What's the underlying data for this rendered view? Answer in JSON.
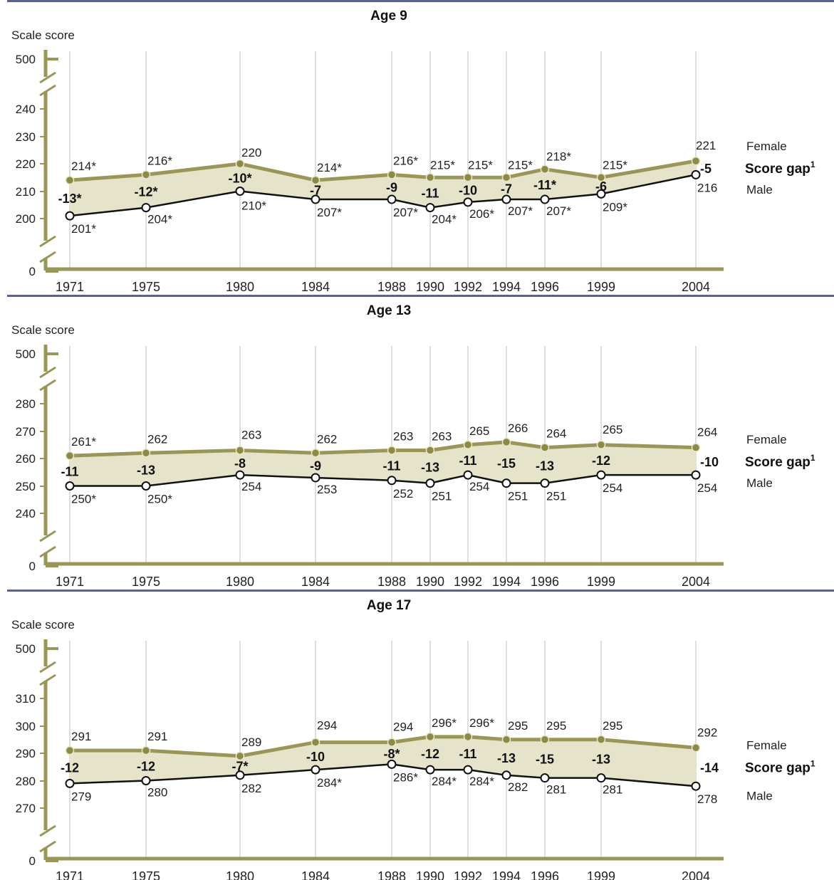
{
  "colors": {
    "female": "#9a9656",
    "female_marker": "#8c8a45",
    "male": "#111111",
    "band": "#e6e3cb",
    "axis": "#9a9656",
    "separator": "#5c6290",
    "grid": "#c8c8c8"
  },
  "chart_data": [
    {
      "type": "line",
      "title": "Age 9",
      "ylabel": "Scale score",
      "x": [
        "1971",
        "1975",
        "1980",
        "1984",
        "1988",
        "1990",
        "1992",
        "1994",
        "1996",
        "1999",
        "2004"
      ],
      "y_ticks": [
        "500",
        "240",
        "230",
        "220",
        "210",
        "200",
        "0"
      ],
      "ylim": [
        195,
        245
      ],
      "axis_break": true,
      "series": [
        {
          "name": "Female",
          "values": [
            214,
            216,
            220,
            214,
            216,
            215,
            215,
            215,
            218,
            215,
            221
          ],
          "labels": [
            "214*",
            "216*",
            "220",
            "214*",
            "216*",
            "215*",
            "215*",
            "215*",
            "218*",
            "215*",
            "221"
          ]
        },
        {
          "name": "Male",
          "values": [
            201,
            204,
            210,
            207,
            207,
            204,
            206,
            207,
            207,
            209,
            216
          ],
          "labels": [
            "201*",
            "204*",
            "210*",
            "207*",
            "207*",
            "204*",
            "206*",
            "207*",
            "207*",
            "209*",
            "216"
          ]
        }
      ],
      "gap_label": "Score gap",
      "gap_footnote": "1",
      "gaps": [
        "-13*",
        "-12*",
        "-10*",
        "-7",
        "-9",
        "-11",
        "-10",
        "-7",
        "-11*",
        "-6",
        "-5"
      ]
    },
    {
      "type": "line",
      "title": "Age 13",
      "ylabel": "Scale score",
      "x": [
        "1971",
        "1975",
        "1980",
        "1984",
        "1988",
        "1990",
        "1992",
        "1994",
        "1996",
        "1999",
        "2004"
      ],
      "y_ticks": [
        "500",
        "280",
        "270",
        "260",
        "250",
        "240",
        "0"
      ],
      "ylim": [
        235,
        285
      ],
      "axis_break": true,
      "series": [
        {
          "name": "Female",
          "values": [
            261,
            262,
            263,
            262,
            263,
            263,
            265,
            266,
            264,
            265,
            264
          ],
          "labels": [
            "261*",
            "262",
            "263",
            "262",
            "263",
            "263",
            "265",
            "266",
            "264",
            "265",
            "264"
          ]
        },
        {
          "name": "Male",
          "values": [
            250,
            250,
            254,
            253,
            252,
            251,
            254,
            251,
            251,
            254,
            254
          ],
          "labels": [
            "250*",
            "250*",
            "254",
            "253",
            "252",
            "251",
            "254",
            "251",
            "251",
            "254",
            "254"
          ]
        }
      ],
      "gap_label": "Score gap",
      "gap_footnote": "1",
      "gaps": [
        "-11",
        "-13",
        "-8",
        "-9",
        "-11",
        "-13",
        "-11",
        "-15",
        "-13",
        "-12",
        "-10"
      ]
    },
    {
      "type": "line",
      "title": "Age 17",
      "ylabel": "Scale score",
      "x": [
        "1971",
        "1975",
        "1980",
        "1984",
        "1988",
        "1990",
        "1992",
        "1994",
        "1996",
        "1999",
        "2004"
      ],
      "y_ticks": [
        "500",
        "310",
        "300",
        "290",
        "280",
        "270",
        "0"
      ],
      "ylim": [
        265,
        315
      ],
      "axis_break": true,
      "series": [
        {
          "name": "Female",
          "values": [
            291,
            291,
            289,
            294,
            294,
            296,
            296,
            295,
            295,
            295,
            292
          ],
          "labels": [
            "291",
            "291",
            "289",
            "294",
            "294",
            "296*",
            "296*",
            "295",
            "295",
            "295",
            "292"
          ]
        },
        {
          "name": "Male",
          "values": [
            279,
            280,
            282,
            284,
            286,
            284,
            284,
            282,
            281,
            281,
            278
          ],
          "labels": [
            "279",
            "280",
            "282",
            "284*",
            "286*",
            "284*",
            "284*",
            "282",
            "281",
            "281",
            "278"
          ]
        }
      ],
      "gap_label": "Score gap",
      "gap_footnote": "1",
      "gaps": [
        "-12",
        "-12",
        "-7*",
        "-10",
        "-8*",
        "-12",
        "-11",
        "-13",
        "-15",
        "-13",
        "-14"
      ]
    }
  ]
}
